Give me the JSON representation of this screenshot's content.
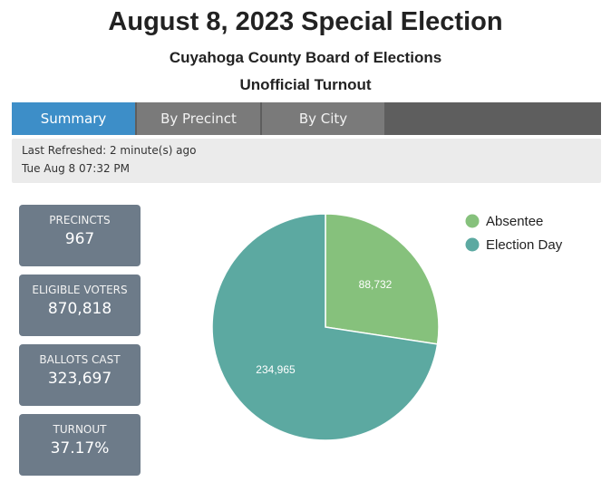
{
  "header": {
    "title": "August 8, 2023 Special Election",
    "subtitle": "Cuyahoga County Board of Elections",
    "caption": "Unofficial Turnout"
  },
  "tabs": {
    "summary": "Summary",
    "by_precinct": "By Precinct",
    "by_city": "By City"
  },
  "refresh": {
    "last_refreshed": "Last Refreshed: 2 minute(s) ago",
    "timestamp": "Tue Aug 8 07:32 PM"
  },
  "stats": {
    "precincts_label": "PRECINCTS",
    "precincts_value": "967",
    "eligible_label": "ELIGIBLE VOTERS",
    "eligible_value": "870,818",
    "ballots_label": "BALLOTS CAST",
    "ballots_value": "323,697",
    "turnout_label": "TURNOUT",
    "turnout_value": "37.17%"
  },
  "chart_data": {
    "type": "pie",
    "title": "",
    "labels": [
      "Absentee",
      "Election Day"
    ],
    "values": [
      88732,
      234965
    ],
    "value_labels": [
      "88,732",
      "234,965"
    ],
    "colors": [
      "#86c17c",
      "#5ca9a1"
    ],
    "legend_position": "top-right"
  }
}
